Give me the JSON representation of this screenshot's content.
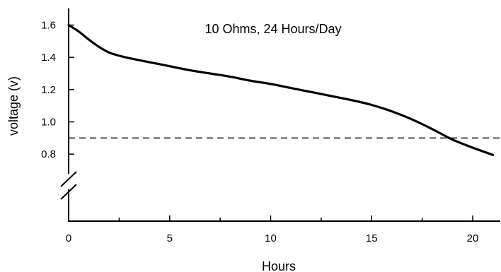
{
  "chart_data": {
    "type": "line",
    "annotation": "10 Ohms, 24 Hours/Day",
    "xlabel": "Hours",
    "ylabel": "voltage (v)",
    "xlim": [
      0,
      21.5
    ],
    "ylim_visible": [
      0.8,
      1.6
    ],
    "y_axis_break": true,
    "grid": false,
    "x_ticks": [
      0,
      5,
      10,
      15,
      20
    ],
    "x_tick_labels": [
      "0",
      "5",
      "10",
      "15",
      "20"
    ],
    "x_minor_ticks": [
      2.5,
      7.5,
      12.5,
      17.5
    ],
    "y_ticks": [
      1.6,
      1.4,
      1.2,
      1.0,
      0.8
    ],
    "y_tick_labels": [
      "1.6",
      "1.4",
      "1.2",
      "1.0",
      "0.8"
    ],
    "reference_lines": [
      {
        "axis": "y",
        "value": 0.9,
        "style": "dashed"
      }
    ],
    "series": [
      {
        "x": [
          0,
          0.5,
          1,
          1.5,
          2,
          2.5,
          3,
          4,
          5,
          6,
          7,
          8,
          9,
          10,
          11,
          12,
          13,
          14,
          15,
          16,
          17,
          18,
          19,
          20,
          21
        ],
        "y": [
          1.6,
          1.56,
          1.51,
          1.465,
          1.43,
          1.41,
          1.395,
          1.37,
          1.345,
          1.32,
          1.3,
          1.28,
          1.255,
          1.235,
          1.21,
          1.185,
          1.16,
          1.135,
          1.105,
          1.065,
          1.015,
          0.955,
          0.89,
          0.84,
          0.795
        ],
        "color": "#000000"
      }
    ]
  }
}
